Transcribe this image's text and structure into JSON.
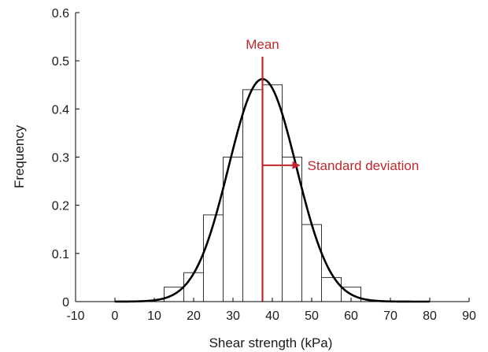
{
  "chart_data": {
    "type": "bar",
    "xlabel": "Shear strength (kPa)",
    "ylabel": "Frequency",
    "xlim": [
      -10,
      90
    ],
    "ylim": [
      0,
      0.6
    ],
    "xticks": [
      -10,
      0,
      10,
      20,
      30,
      40,
      50,
      60,
      70,
      80,
      90
    ],
    "yticks": [
      0,
      0.1,
      0.2,
      0.3,
      0.4,
      0.5,
      0.6
    ],
    "ytick_labels": [
      "0",
      "0.1",
      "0.2",
      "0.3",
      "0.4",
      "0.5",
      "0.6"
    ],
    "grid": false,
    "histogram": {
      "bin_width": 5,
      "bin_left_edges": [
        12.5,
        17.5,
        22.5,
        27.5,
        32.5,
        37.5,
        42.5,
        47.5,
        52.5,
        57.5
      ],
      "values": [
        0.03,
        0.06,
        0.18,
        0.3,
        0.44,
        0.45,
        0.3,
        0.16,
        0.05,
        0.03
      ]
    },
    "normal_curve": {
      "mean": 37.5,
      "std_dev": 8.6,
      "peak": 0.462,
      "x_range": [
        0,
        80
      ]
    },
    "annotations": {
      "mean_label": "Mean",
      "std_label": "Standard deviation",
      "std_arrow_y": 0.283
    },
    "colors": {
      "annotation": "#c1272d",
      "curve": "#000000",
      "bars": "#ffffff",
      "bar_edge": "#333333"
    }
  }
}
